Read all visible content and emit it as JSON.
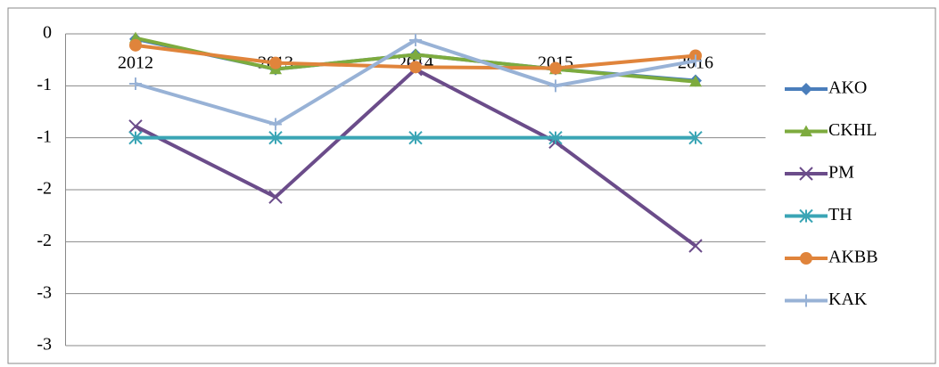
{
  "chart_data": {
    "type": "line",
    "categories": [
      "2012",
      "2013",
      "2014",
      "2015",
      "2016"
    ],
    "series": [
      {
        "name": "AKO",
        "color": "#4a7ebb",
        "marker": "diamond",
        "values": [
          -0.05,
          -0.34,
          -0.2,
          -0.34,
          -0.45
        ]
      },
      {
        "name": "CKHL",
        "color": "#7dab3e",
        "marker": "triangle",
        "values": [
          -0.04,
          -0.34,
          -0.2,
          -0.34,
          -0.46
        ]
      },
      {
        "name": "PM",
        "color": "#6b4c8a",
        "marker": "x",
        "values": [
          -0.89,
          -1.57,
          -0.34,
          -1.04,
          -2.04
        ]
      },
      {
        "name": "TH",
        "color": "#3aa5b5",
        "marker": "star",
        "values": [
          -1,
          -1,
          -1,
          -1,
          -1
        ]
      },
      {
        "name": "AKBB",
        "color": "#e0843b",
        "marker": "circle",
        "values": [
          -0.11,
          -0.28,
          -0.32,
          -0.33,
          -0.21
        ]
      },
      {
        "name": "KAK",
        "color": "#98b2d6",
        "marker": "plus",
        "values": [
          -0.48,
          -0.87,
          -0.06,
          -0.5,
          -0.26
        ]
      }
    ],
    "ylim": [
      -3,
      0
    ],
    "yticks": [
      0,
      {
        "value": -0.5,
        "label": "-1"
      },
      -1,
      {
        "value": -1.5,
        "label": "-2"
      },
      -2,
      {
        "value": -2.5,
        "label": "-3"
      },
      -3
    ],
    "grid": true,
    "legend": "right"
  }
}
